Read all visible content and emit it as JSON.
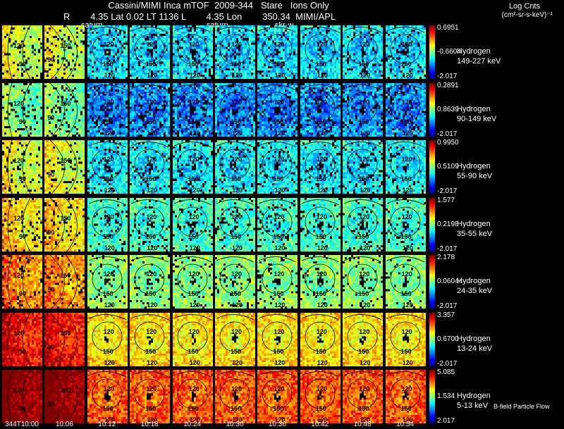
{
  "header": {
    "title": "Cassini/MIMI Inca mTOF  2009-344   Stare   Ions Only",
    "subtitle": "R        4.35 Lat 0.02 LT 1136 L        4.35 Lon        350.34  MIMI/APL"
  },
  "panel_overlay_labels": [
    "saturn",
    "saturn",
    "skr-w"
  ],
  "legend": {
    "title": "Log Cnts",
    "units": "(cm²-sr-s-keV)⁻¹"
  },
  "chart_data": {
    "type": "heatmap",
    "panel_grid": {
      "columns": 10,
      "rows": 7
    },
    "time_labels": [
      "344T10:00",
      "10:06",
      "10:12",
      "10:18",
      "10:24",
      "10:30",
      "10:36",
      "10:42",
      "10:48",
      "10:54"
    ],
    "contour_labels": [
      "120",
      "150",
      "90"
    ],
    "colorbar": {
      "colormap": "jet",
      "scale": "log"
    },
    "channels": [
      {
        "species": "Hydrogen",
        "energy": "149-227 keV",
        "max": "0.6951",
        "mid": "-0.6604",
        "min": "-2.017",
        "level": 0.3
      },
      {
        "species": "Hydrogen",
        "energy": "90-149 keV",
        "max": "0.2891",
        "mid": "0.8639",
        "min": "-2.017",
        "level": 0.22
      },
      {
        "species": "Hydrogen",
        "energy": "55-90 keV",
        "max": "0.9950",
        "mid": "0.5109",
        "min": "-2.017",
        "level": 0.32
      },
      {
        "species": "Hydrogen",
        "energy": "35-55 keV",
        "max": "1.577",
        "mid": "0.2198",
        "min": "-2.017",
        "level": 0.38
      },
      {
        "species": "Hydrogen",
        "energy": "24-35 keV",
        "max": "2.178",
        "mid": "0.06044",
        "min": "-2.017",
        "level": 0.46
      },
      {
        "species": "Hydrogen",
        "energy": "13-24 keV",
        "max": "3.357",
        "mid": "0.6700",
        "min": "-2.017",
        "level": 0.6
      },
      {
        "species": "Hydrogen",
        "energy": "5-13 keV",
        "max": "5.085",
        "mid": "1.534",
        "min": "2.017",
        "level": 0.74
      }
    ]
  },
  "footer": {
    "flow_label": "B-field Particle Flow"
  }
}
